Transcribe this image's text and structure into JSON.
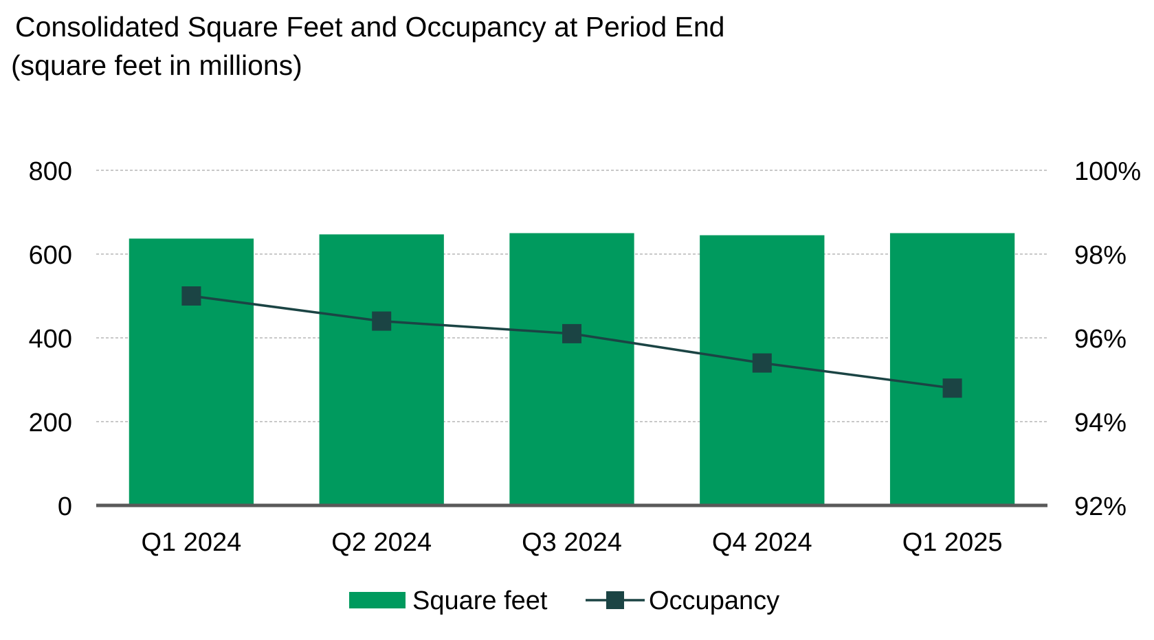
{
  "chart_data": {
    "type": "bar",
    "title": "Consolidated Square Feet and Occupancy at Period End",
    "subtitle": "(square feet in millions)",
    "categories": [
      "Q1 2024",
      "Q2 2024",
      "Q3 2024",
      "Q4 2024",
      "Q1 2025"
    ],
    "series": [
      {
        "name": "Square feet",
        "type": "bar",
        "axis": "left",
        "color": "#009a5e",
        "values": [
          637,
          647,
          650,
          645,
          650
        ]
      },
      {
        "name": "Occupancy",
        "type": "line",
        "axis": "right",
        "color": "#1b4444",
        "marker": "square",
        "values": [
          97.0,
          96.4,
          96.1,
          95.4,
          94.8
        ]
      }
    ],
    "left_axis": {
      "ylim": [
        0,
        800
      ],
      "ticks": [
        0,
        200,
        400,
        600,
        800
      ],
      "tick_labels": [
        "0",
        "200",
        "400",
        "600",
        "800"
      ]
    },
    "right_axis": {
      "ylim": [
        92,
        100
      ],
      "ticks": [
        92,
        94,
        96,
        98,
        100
      ],
      "tick_labels": [
        "92%",
        "94%",
        "96%",
        "98%",
        "100%"
      ]
    },
    "grid": true,
    "legend": {
      "placement": "bottom-center",
      "entries": [
        "Square feet",
        "Occupancy"
      ]
    }
  }
}
